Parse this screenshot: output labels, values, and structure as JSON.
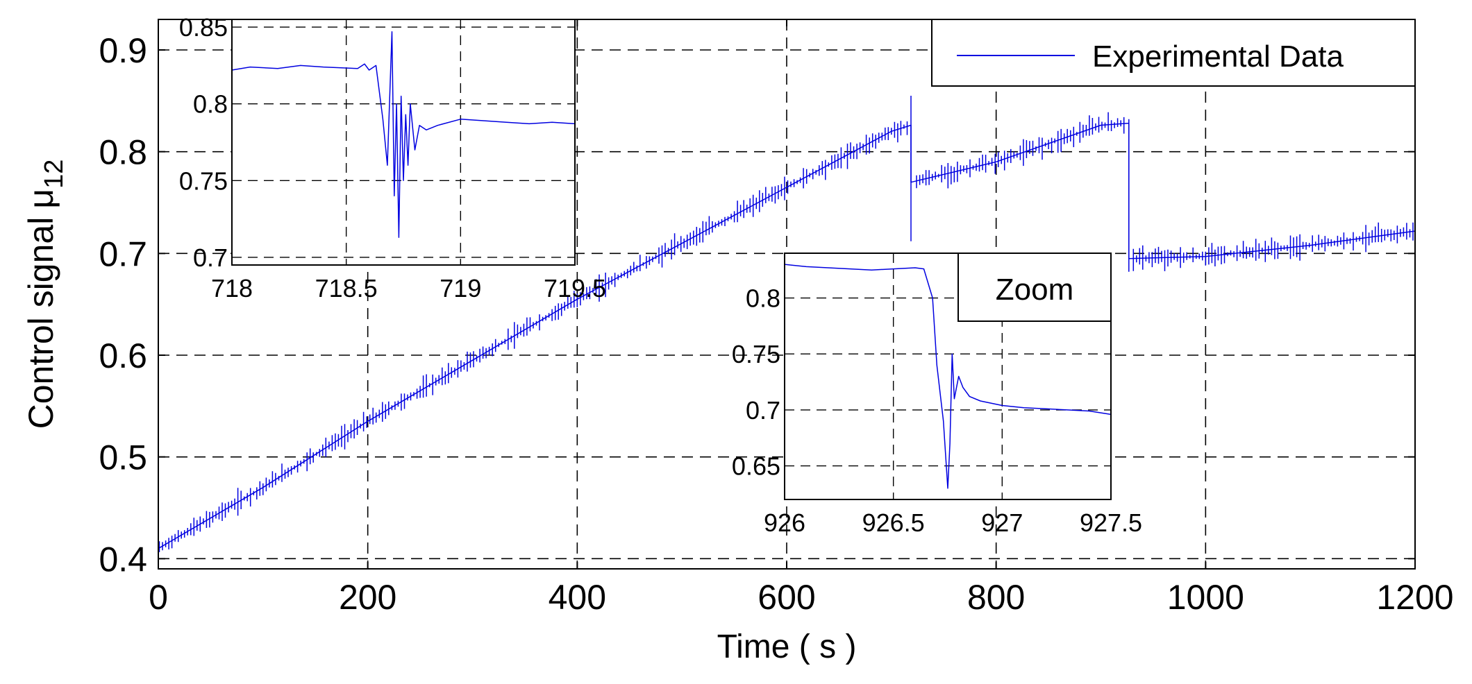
{
  "chart_data": [
    {
      "id": "main",
      "type": "line",
      "title": "",
      "xlabel": "Time ( s )",
      "ylabel": "Control signal",
      "ylabel_symbol": "μ",
      "ylabel_subscript": "12",
      "xlim": [
        0,
        1200
      ],
      "ylim": [
        0.39,
        0.93
      ],
      "xticks": [
        0,
        200,
        400,
        600,
        800,
        1000,
        1200
      ],
      "yticks": [
        0.4,
        0.5,
        0.6,
        0.7,
        0.8,
        0.9
      ],
      "xtick_labels": [
        "0",
        "200",
        "400",
        "600",
        "800",
        "1000",
        "1200"
      ],
      "ytick_labels": [
        "0.4",
        "0.5",
        "0.6",
        "0.7",
        "0.8",
        "0.9"
      ],
      "grid": true,
      "legend": {
        "position": "top-right",
        "entries": [
          "Experimental Data"
        ]
      },
      "series": [
        {
          "name": "Experimental Data",
          "color": "#0000e0",
          "x": [
            0,
            100,
            200,
            300,
            400,
            500,
            600,
            700,
            718.7,
            718.7,
            800,
            900,
            926.7,
            926.7,
            1000,
            1100,
            1200
          ],
          "y": [
            0.41,
            0.47,
            0.535,
            0.595,
            0.655,
            0.71,
            0.765,
            0.82,
            0.826,
            0.77,
            0.79,
            0.826,
            0.828,
            0.695,
            0.697,
            0.708,
            0.722
          ],
          "noise_amplitude": 0.012,
          "spikes": [
            {
              "x": 718.7,
              "top": 0.855,
              "bottom": 0.712
            },
            {
              "x": 926.7,
              "top": 0.832,
              "bottom": 0.682
            }
          ]
        }
      ]
    },
    {
      "id": "inset-left",
      "type": "line",
      "xlim": [
        718,
        719.5
      ],
      "ylim": [
        0.695,
        0.855
      ],
      "xticks": [
        718,
        718.5,
        719,
        719.5
      ],
      "yticks": [
        0.7,
        0.75,
        0.8,
        0.85
      ],
      "xtick_labels": [
        "718",
        "718.5",
        "719",
        "719.5"
      ],
      "ytick_labels": [
        "0.7",
        "0.75",
        "0.8",
        "0.85"
      ],
      "grid": true,
      "series": [
        {
          "name": "Experimental Data",
          "x": [
            718.0,
            718.08,
            718.2,
            718.3,
            718.4,
            718.55,
            718.58,
            718.6,
            718.63,
            718.66,
            718.68,
            718.7,
            718.71,
            718.72,
            718.73,
            718.74,
            718.75,
            718.76,
            718.77,
            718.78,
            718.8,
            718.82,
            718.85,
            718.9,
            719.0,
            719.1,
            719.2,
            719.3,
            719.4,
            719.5
          ],
          "y": [
            0.822,
            0.824,
            0.823,
            0.825,
            0.824,
            0.823,
            0.826,
            0.822,
            0.825,
            0.79,
            0.76,
            0.847,
            0.74,
            0.8,
            0.713,
            0.805,
            0.75,
            0.793,
            0.76,
            0.8,
            0.77,
            0.786,
            0.783,
            0.786,
            0.79,
            0.789,
            0.788,
            0.787,
            0.788,
            0.787
          ]
        }
      ]
    },
    {
      "id": "inset-zoom",
      "type": "line",
      "title": "Zoom",
      "xlim": [
        926,
        927.5
      ],
      "ylim": [
        0.62,
        0.84
      ],
      "xticks": [
        926,
        926.5,
        927,
        927.5
      ],
      "yticks": [
        0.65,
        0.7,
        0.75,
        0.8
      ],
      "xtick_labels": [
        "926",
        "926.5",
        "927",
        "927.5"
      ],
      "ytick_labels": [
        "0.65",
        "0.7",
        "0.75",
        "0.8"
      ],
      "grid": true,
      "series": [
        {
          "name": "Experimental Data",
          "x": [
            926.0,
            926.1,
            926.2,
            926.3,
            926.4,
            926.5,
            926.6,
            926.64,
            926.68,
            926.7,
            926.73,
            926.75,
            926.76,
            926.77,
            926.78,
            926.8,
            926.82,
            926.85,
            926.9,
            927.0,
            927.1,
            927.2,
            927.3,
            927.4,
            927.5
          ],
          "y": [
            0.83,
            0.828,
            0.827,
            0.826,
            0.825,
            0.826,
            0.827,
            0.826,
            0.8,
            0.74,
            0.69,
            0.63,
            0.67,
            0.75,
            0.71,
            0.73,
            0.72,
            0.712,
            0.708,
            0.704,
            0.702,
            0.701,
            0.7,
            0.699,
            0.696
          ]
        }
      ]
    }
  ]
}
